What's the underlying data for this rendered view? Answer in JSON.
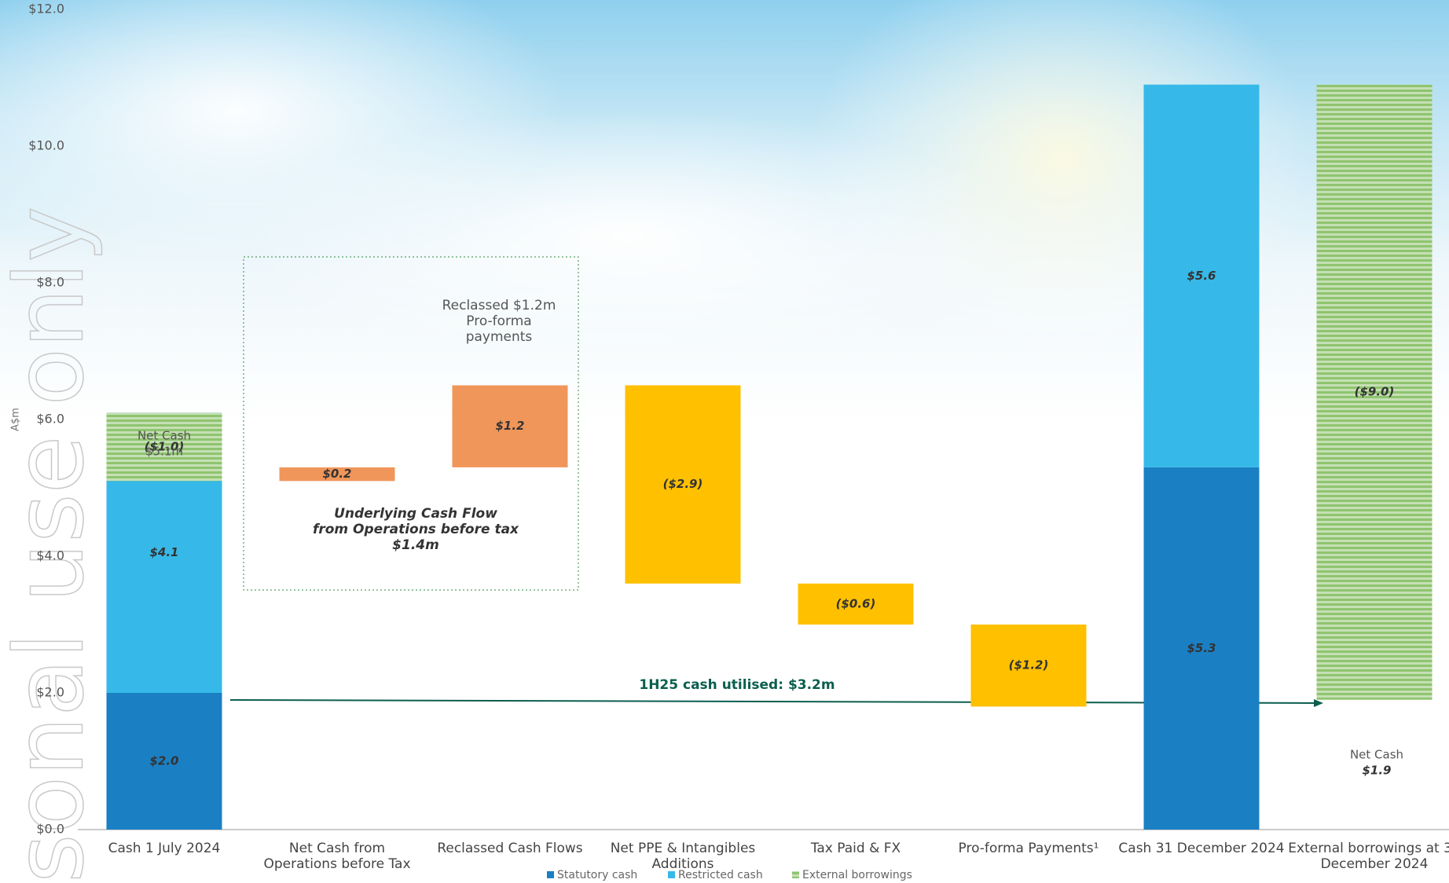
{
  "chart_data": {
    "type": "waterfall",
    "y_label": "A$m",
    "categories": [
      "Cash 1 July 2024",
      "Net Cash from Operations before Tax",
      "Reclassed Cash Flows",
      "Net PPE & Intangibles Additions",
      "Tax Paid & FX",
      "Pro-forma Payments¹",
      "Cash 31 December 2024",
      "External borrowings at 31 December 2024"
    ],
    "series": [
      {
        "name": "Statutory cash",
        "color": "#1b7fc4",
        "values": [
          2.0,
          null,
          null,
          null,
          null,
          null,
          5.3,
          null
        ],
        "value_labels": [
          "$2.0",
          null,
          null,
          null,
          null,
          null,
          "$5.3",
          null
        ]
      },
      {
        "name": "Restricted cash",
        "color": "#36b9e8",
        "values": [
          4.1,
          null,
          null,
          null,
          null,
          null,
          5.6,
          null
        ],
        "value_labels": [
          "$4.1",
          null,
          null,
          null,
          null,
          null,
          "$5.6",
          null
        ]
      },
      {
        "name": "External borrowings",
        "color": "#a9d18e",
        "values": [
          -1.0,
          null,
          null,
          null,
          null,
          null,
          null,
          -9.0
        ],
        "value_labels": [
          "($1.0)",
          null,
          null,
          null,
          null,
          null,
          null,
          "($9.0)"
        ]
      }
    ],
    "flows": {
      "values": [
        null,
        0.2,
        1.2,
        -2.9,
        -0.6,
        -1.2,
        null,
        null
      ],
      "value_labels": [
        null,
        "$0.2",
        "$1.2",
        "($2.9)",
        "($0.6)",
        "($1.2)",
        null,
        null
      ],
      "colors": [
        null,
        "#f0965a",
        "#f0965a",
        "#ffc000",
        "#ffc000",
        "#ffc000",
        null,
        null
      ]
    },
    "ylim": [
      0,
      12
    ],
    "yticks": [
      {
        "value": 0,
        "label": "$0.0"
      },
      {
        "value": 2,
        "label": "$2.0"
      },
      {
        "value": 4,
        "label": "$4.0"
      },
      {
        "value": 6,
        "label": "$6.0"
      },
      {
        "value": 8,
        "label": "$8.0"
      },
      {
        "value": 10,
        "label": "$10.0"
      },
      {
        "value": 12,
        "label": "$12.0"
      }
    ],
    "annotations": [
      [
        "Net Cash",
        "$5.1m"
      ],
      [
        "Reclassed $1.2m",
        "Pro-forma",
        "payments"
      ],
      [
        "Underlying Cash Flow",
        "from Operations before tax",
        "$1.4m"
      ],
      [
        "1H25 cash utilised: $3.2m"
      ],
      [
        "Net Cash",
        "$1.9"
      ]
    ],
    "watermark": "sonal use only"
  }
}
